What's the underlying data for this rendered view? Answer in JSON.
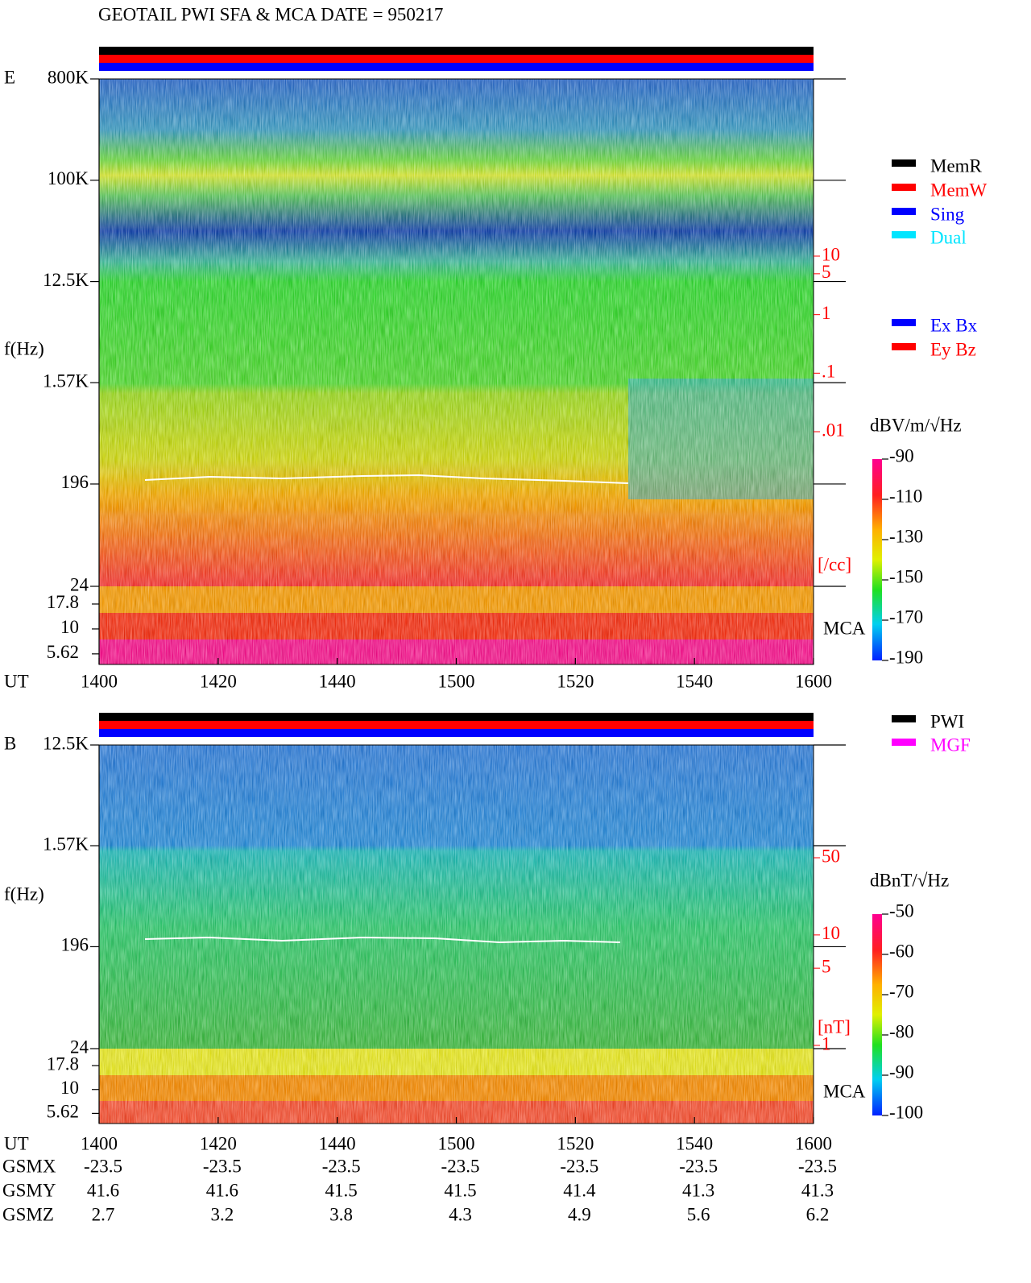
{
  "title": "GEOTAIL  PWI SFA & MCA   DATE = 950217",
  "chart_data": [
    {
      "type": "spectrogram",
      "panel": "E",
      "y_label": "f(Hz)",
      "x_label": "UT",
      "categories": [
        "1400",
        "1420",
        "1440",
        "1500",
        "1520",
        "1540",
        "1600"
      ],
      "log_scale": true,
      "ylim": [
        24,
        800000
      ],
      "yticks": [
        {
          "value": 800000,
          "label": "800K"
        },
        {
          "value": 100000,
          "label": "100K"
        },
        {
          "value": 12500,
          "label": "12.5K"
        },
        {
          "value": 1570,
          "label": "1.57K"
        },
        196,
        24
      ],
      "mca_label": "MCA",
      "mca_ylim": [
        4.4,
        26.8
      ],
      "mca_yticks": [
        17.8,
        10,
        5.62
      ],
      "y2_label": "[/cc]",
      "y2lim": [
        0.01,
        10
      ],
      "y2ticks": [
        10,
        5,
        1,
        {
          "value": 0.1,
          "label": ".1"
        },
        {
          "value": 0.01,
          "label": ".01"
        }
      ],
      "colorbar_label": "dBV/m/√Hz",
      "colorbar_lim": [
        -190,
        -90
      ],
      "colorbar_ticks": [
        -90,
        -110,
        -130,
        -150,
        -170,
        -190
      ],
      "legend": [
        {
          "name": "MemR",
          "color": "#000000"
        },
        {
          "name": "MemW",
          "color": "#ff0000"
        },
        {
          "name": "Sing",
          "color": "#0000ff"
        },
        {
          "name": "Dual",
          "color": "#00e5ff"
        },
        {
          "name": "Ex Bx",
          "color": "#0000ff"
        },
        {
          "name": "Ey Bz",
          "color": "#ff0000"
        }
      ]
    },
    {
      "type": "spectrogram",
      "panel": "B",
      "y_label": "f(Hz)",
      "x_label": "UT",
      "categories": [
        "1400",
        "1420",
        "1440",
        "1500",
        "1520",
        "1540",
        "1600"
      ],
      "log_scale": true,
      "ylim": [
        24,
        12500
      ],
      "yticks": [
        {
          "value": 12500,
          "label": "12.5K"
        },
        {
          "value": 1570,
          "label": "1.57K"
        },
        196,
        24
      ],
      "mca_label": "MCA",
      "mca_ylim": [
        4.4,
        26.8
      ],
      "mca_yticks": [
        17.8,
        10,
        5.62
      ],
      "y2_label": "[nT]",
      "y2lim": [
        1,
        50
      ],
      "y2ticks": [
        50,
        10,
        5,
        1
      ],
      "colorbar_label": "dBnT/√Hz",
      "colorbar_lim": [
        -100,
        -50
      ],
      "colorbar_ticks": [
        -50,
        -60,
        -70,
        -80,
        -90,
        -100
      ],
      "legend": [
        {
          "name": "PWI",
          "color": "#000000"
        },
        {
          "name": "MGF",
          "color": "#ff00ff"
        }
      ]
    }
  ],
  "ephemeris": [
    {
      "label": "GSMX",
      "values": [
        -23.5,
        -23.5,
        -23.5,
        -23.5,
        -23.5,
        -23.5,
        -23.5
      ]
    },
    {
      "label": "GSMY",
      "values": [
        41.6,
        41.6,
        41.5,
        41.5,
        41.4,
        41.3,
        41.3
      ]
    },
    {
      "label": "GSMZ",
      "values": [
        2.7,
        3.2,
        3.8,
        4.3,
        4.9,
        5.6,
        6.2
      ]
    }
  ]
}
